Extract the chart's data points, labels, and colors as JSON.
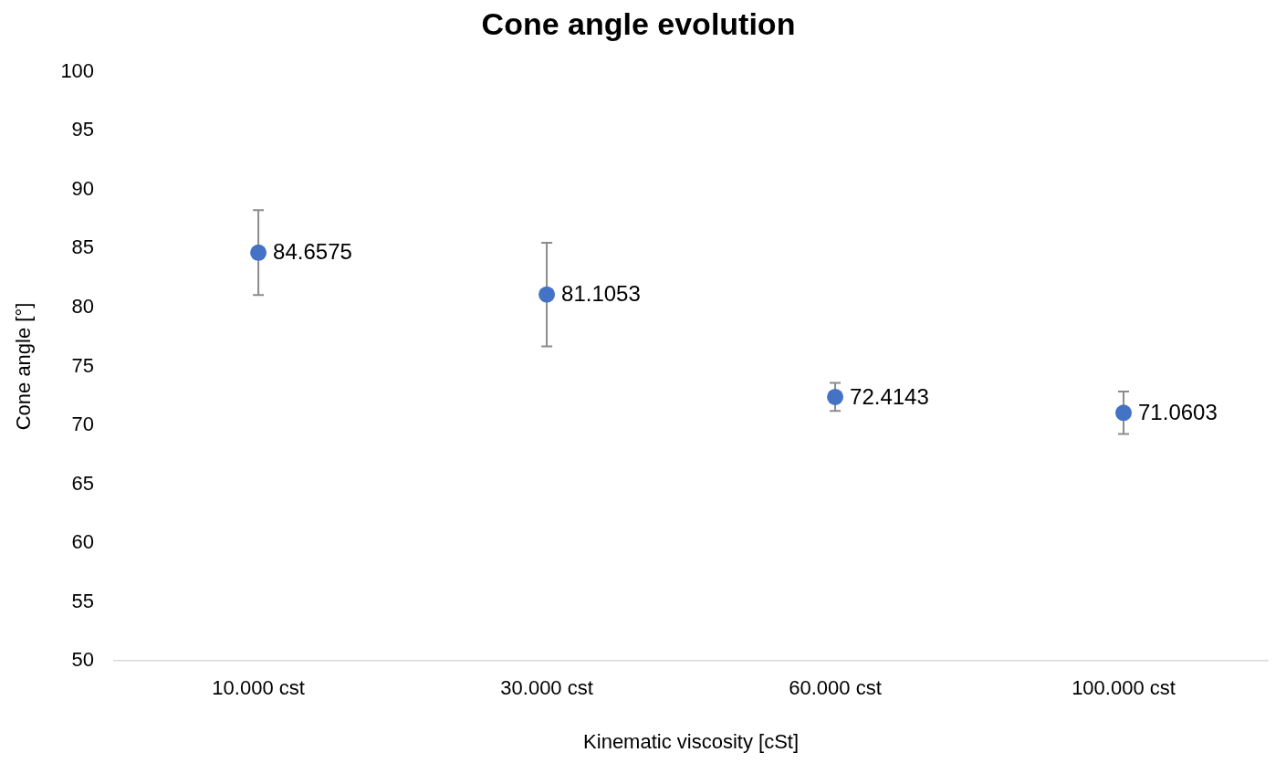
{
  "chart_data": {
    "type": "scatter",
    "title": "Cone angle evolution",
    "xlabel": "Kinematic viscosity [cSt]",
    "ylabel": "Cone angle [°]",
    "categories": [
      "10.000 cst",
      "30.000 cst",
      "60.000 cst",
      "100.000 cst"
    ],
    "series": [
      {
        "color": "#4472c4",
        "values": [
          84.6575,
          81.1053,
          72.4143,
          71.0603
        ],
        "errors": [
          3.6,
          4.4,
          1.2,
          1.8
        ]
      }
    ],
    "data_labels": true,
    "marker": "circle",
    "grid": false,
    "legend": false,
    "ylim": [
      50,
      100
    ],
    "yticks": [
      50,
      55,
      60,
      65,
      70,
      75,
      80,
      85,
      90,
      95,
      100
    ]
  }
}
